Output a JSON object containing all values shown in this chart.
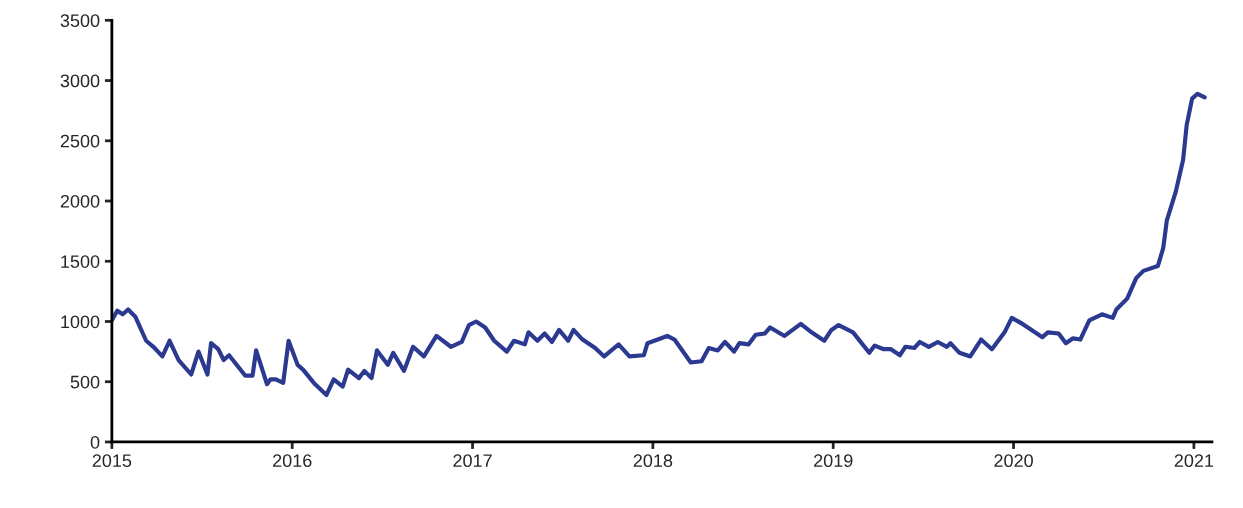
{
  "chart_data": {
    "type": "line",
    "x": [
      2015.0,
      2015.03,
      2015.06,
      2015.09,
      2015.13,
      2015.19,
      2015.23,
      2015.28,
      2015.32,
      2015.37,
      2015.44,
      2015.48,
      2015.53,
      2015.55,
      2015.59,
      2015.62,
      2015.65,
      2015.74,
      2015.78,
      2015.8,
      2015.86,
      2015.88,
      2015.91,
      2015.95,
      2015.98,
      2016.03,
      2016.06,
      2016.12,
      2016.19,
      2016.23,
      2016.28,
      2016.31,
      2016.37,
      2016.4,
      2016.44,
      2016.47,
      2016.53,
      2016.56,
      2016.62,
      2016.67,
      2016.73,
      2016.8,
      2016.88,
      2016.94,
      2016.98,
      2017.02,
      2017.07,
      2017.12,
      2017.19,
      2017.23,
      2017.29,
      2017.31,
      2017.36,
      2017.4,
      2017.44,
      2017.48,
      2017.53,
      2017.56,
      2017.61,
      2017.68,
      2017.73,
      2017.81,
      2017.87,
      2017.95,
      2017.97,
      2018.08,
      2018.12,
      2018.21,
      2018.27,
      2018.31,
      2018.36,
      2018.4,
      2018.45,
      2018.48,
      2018.53,
      2018.57,
      2018.62,
      2018.65,
      2018.73,
      2018.82,
      2018.88,
      2018.95,
      2018.99,
      2019.03,
      2019.11,
      2019.2,
      2019.23,
      2019.28,
      2019.32,
      2019.37,
      2019.4,
      2019.45,
      2019.48,
      2019.53,
      2019.58,
      2019.63,
      2019.65,
      2019.7,
      2019.76,
      2019.82,
      2019.88,
      2019.95,
      2019.99,
      2020.05,
      2020.16,
      2020.19,
      2020.25,
      2020.29,
      2020.33,
      2020.37,
      2020.42,
      2020.49,
      2020.55,
      2020.57,
      2020.63,
      2020.68,
      2020.72,
      2020.8,
      2020.81,
      2020.83,
      2020.85,
      2020.9,
      2020.94,
      2020.96,
      2020.99,
      2021.02,
      2021.06
    ],
    "series": [
      {
        "color": "#2b3990",
        "values": [
          1010,
          1090,
          1060,
          1100,
          1040,
          840,
          790,
          710,
          840,
          680,
          560,
          750,
          560,
          820,
          770,
          680,
          720,
          550,
          550,
          760,
          480,
          520,
          520,
          490,
          840,
          640,
          600,
          490,
          390,
          520,
          460,
          600,
          530,
          590,
          530,
          760,
          640,
          740,
          590,
          790,
          710,
          880,
          790,
          830,
          970,
          1000,
          950,
          840,
          750,
          840,
          810,
          910,
          840,
          900,
          830,
          930,
          840,
          930,
          850,
          780,
          710,
          810,
          710,
          720,
          820,
          880,
          850,
          660,
          670,
          780,
          760,
          830,
          750,
          820,
          810,
          890,
          900,
          950,
          880,
          980,
          910,
          840,
          930,
          970,
          910,
          740,
          800,
          770,
          770,
          720,
          790,
          780,
          830,
          790,
          830,
          790,
          820,
          740,
          710,
          850,
          770,
          910,
          1030,
          980,
          870,
          910,
          900,
          820,
          860,
          850,
          1010,
          1060,
          1030,
          1100,
          1190,
          1360,
          1420,
          1460,
          1510,
          1610,
          1840,
          2080,
          2340,
          2630,
          2850,
          2890,
          2860
        ]
      }
    ],
    "xlim": [
      2015,
      2021.1
    ],
    "xticks": [
      2015,
      2016,
      2017,
      2018,
      2019,
      2020,
      2021
    ],
    "ylim": [
      0,
      3500
    ],
    "yticks": [
      0,
      500,
      1000,
      1500,
      2000,
      2500,
      3000,
      3500
    ],
    "grid": false,
    "line_style": "solid"
  }
}
